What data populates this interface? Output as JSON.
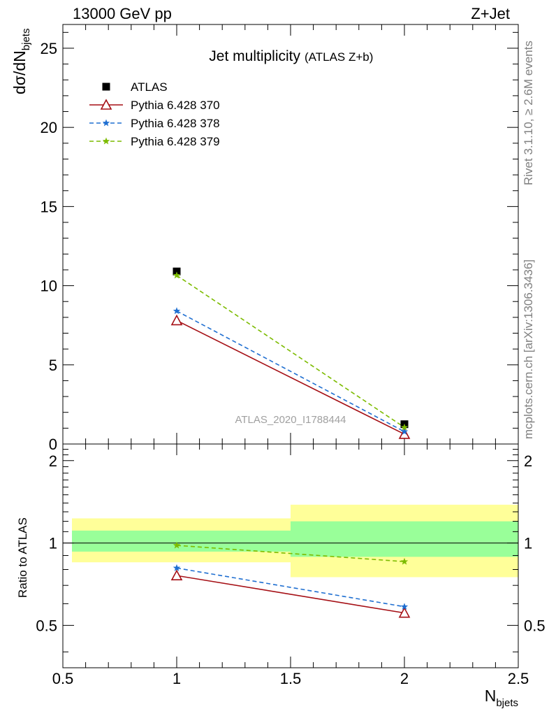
{
  "header": {
    "left": "13000 GeV pp",
    "right": "Z+Jet"
  },
  "side_text": {
    "rivet": "Rivet 3.1.10, ≥ 2.6M events",
    "mcplots": "mcplots.cern.ch [arXiv:1306.3436]"
  },
  "chart_data": [
    {
      "type": "line",
      "panel": "main",
      "title": "Jet multiplicity",
      "subtitle": "(ATLAS Z+b)",
      "analysis_label": "ATLAS_2020_I1788444",
      "ylabel_main": "dσ/dN",
      "ylabel_sub": "bjets",
      "xlim": [
        0.5,
        2.5
      ],
      "ylim": [
        0,
        26.5
      ],
      "yticks": [
        {
          "v": 0,
          "label": "0"
        },
        {
          "v": 5,
          "label": "5"
        },
        {
          "v": 10,
          "label": "10"
        },
        {
          "v": 15,
          "label": "15"
        },
        {
          "v": 20,
          "label": "20"
        },
        {
          "v": 25,
          "label": "25"
        }
      ],
      "x": [
        1,
        2
      ],
      "series": [
        {
          "name": "ATLAS",
          "values": [
            10.9,
            1.25
          ],
          "color": "#000000",
          "marker": "square",
          "dash": ""
        },
        {
          "name": "Pythia 6.428 370",
          "values": [
            7.8,
            0.62
          ],
          "color": "#a50f15",
          "marker": "triangle",
          "dash": ""
        },
        {
          "name": "Pythia 6.428 378",
          "values": [
            8.4,
            0.78
          ],
          "color": "#1f6fd1",
          "marker": "star",
          "dash": "6,4"
        },
        {
          "name": "Pythia 6.428 379",
          "values": [
            10.65,
            1.05
          ],
          "color": "#7cbb00",
          "marker": "star",
          "dash": "6,4"
        }
      ]
    },
    {
      "type": "line",
      "panel": "ratio",
      "ylabel": "Ratio to ATLAS",
      "xlabel_main": "N",
      "xlabel_sub": "bjets",
      "xlim": [
        0.5,
        2.5
      ],
      "ylim": [
        0.35,
        2.3
      ],
      "xticks": [
        {
          "v": 0.5,
          "label": "0.5"
        },
        {
          "v": 1,
          "label": "1"
        },
        {
          "v": 1.5,
          "label": "1.5"
        },
        {
          "v": 2,
          "label": "2"
        },
        {
          "v": 2.5,
          "label": "2.5"
        }
      ],
      "yticks": [
        {
          "v": 0.5,
          "label": "0.5"
        },
        {
          "v": 1,
          "label": "1"
        },
        {
          "v": 2,
          "label": "2"
        }
      ],
      "bands": [
        {
          "x0": 0.5,
          "x1": 1.5,
          "yellow": [
            0.85,
            1.23
          ],
          "green": [
            0.93,
            1.11
          ]
        },
        {
          "x0": 1.5,
          "x1": 2.5,
          "yellow": [
            0.75,
            1.38
          ],
          "green": [
            0.89,
            1.2
          ]
        }
      ],
      "x": [
        1,
        2
      ],
      "series": [
        {
          "name": "Pythia 6.428 370",
          "values": [
            0.76,
            0.555
          ],
          "color": "#a50f15",
          "marker": "triangle",
          "dash": ""
        },
        {
          "name": "Pythia 6.428 378",
          "values": [
            0.81,
            0.585
          ],
          "color": "#1f6fd1",
          "marker": "star",
          "dash": "6,4"
        },
        {
          "name": "Pythia 6.428 379",
          "values": [
            0.98,
            0.855
          ],
          "color": "#7cbb00",
          "marker": "star",
          "dash": "6,4"
        }
      ]
    }
  ]
}
